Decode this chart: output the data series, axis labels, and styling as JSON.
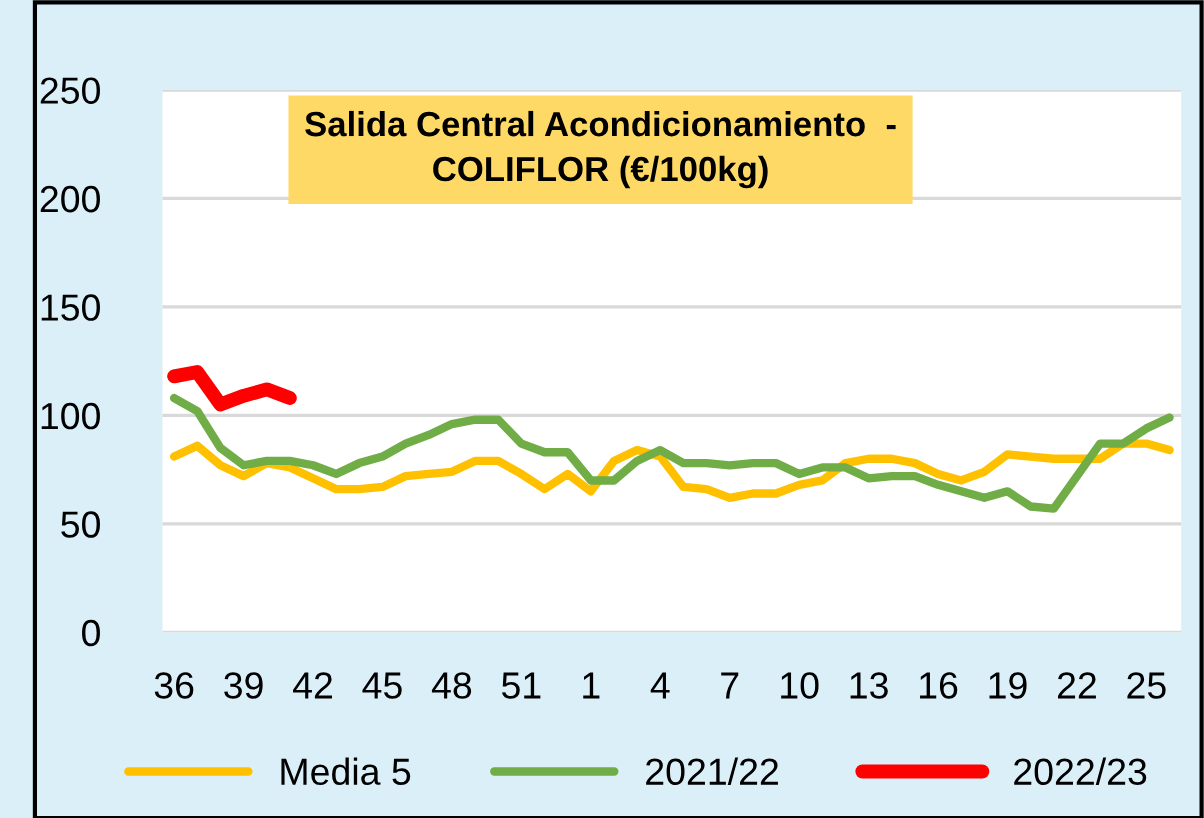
{
  "chart_data": {
    "type": "line",
    "title": "Salida Central Acondicionamiento  -\nCOLIFLOR (€/100kg)",
    "categories": [
      "36",
      null,
      null,
      "39",
      null,
      null,
      "42",
      null,
      null,
      "45",
      null,
      null,
      "48",
      null,
      null,
      "51",
      null,
      null,
      "1",
      null,
      null,
      "4",
      null,
      null,
      "7",
      null,
      null,
      "10",
      null,
      null,
      "13",
      null,
      null,
      "16",
      null,
      null,
      "19",
      null,
      null,
      "22",
      null,
      null,
      "25",
      null
    ],
    "series": [
      {
        "name": "Media 5",
        "color": "#ffc000",
        "values": [
          81,
          86,
          77,
          72,
          78,
          76,
          71,
          66,
          66,
          67,
          72,
          73,
          74,
          79,
          79,
          73,
          66,
          73,
          65,
          79,
          84,
          81,
          67,
          66,
          62,
          64,
          64,
          68,
          70,
          78,
          80,
          80,
          78,
          73,
          70,
          74,
          82,
          81,
          80,
          80,
          80,
          87,
          87,
          84
        ]
      },
      {
        "name": "2021/22",
        "color": "#70ad47",
        "values": [
          108,
          102,
          85,
          77,
          79,
          79,
          77,
          73,
          78,
          81,
          87,
          91,
          96,
          98,
          98,
          87,
          83,
          83,
          70,
          70,
          79,
          84,
          78,
          78,
          77,
          78,
          78,
          73,
          76,
          76,
          71,
          72,
          72,
          68,
          65,
          62,
          65,
          58,
          57,
          72,
          87,
          87,
          94,
          99
        ]
      },
      {
        "name": "2022/23",
        "color": "#ff0000",
        "values": [
          118,
          120,
          105,
          109,
          112,
          108,
          null,
          null,
          null,
          null,
          null,
          null,
          null,
          null,
          null,
          null,
          null,
          null,
          null,
          null,
          null,
          null,
          null,
          null,
          null,
          null,
          null,
          null,
          null,
          null,
          null,
          null,
          null,
          null,
          null,
          null,
          null,
          null,
          null,
          null,
          null,
          null,
          null,
          null
        ]
      }
    ],
    "ylim": [
      0,
      250
    ],
    "yticks": [
      0,
      50,
      100,
      150,
      200,
      250
    ],
    "grid": "y",
    "legend": "bottom"
  }
}
